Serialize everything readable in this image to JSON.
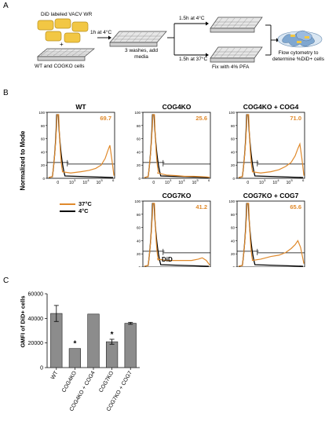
{
  "panels": {
    "a": "A",
    "b": "B",
    "c": "C"
  },
  "schematic": {
    "virus_label": "DiD labeled VACV WR",
    "plus": "+",
    "cells_label": "WT and COGKO cells",
    "step1": "1h at 4°C",
    "step2": "3 washes, add media",
    "cold_arm": "1.5h at 4°C",
    "warm_arm": "1.5h at 37°C",
    "fix": "Fix with 4% PFA",
    "readout": "Flow cytometry to determine %DiD+ cells"
  },
  "histograms": {
    "ylabel": "Normalized to Mode",
    "xlabel": "DiD",
    "legend": [
      {
        "label": "37°C",
        "color": "#E08A2C"
      },
      {
        "label": "4°C",
        "color": "#000000"
      }
    ],
    "y_ticks": [
      "100",
      "80",
      "60",
      "40",
      "20",
      "0"
    ],
    "x_ticks": [
      "0",
      "10",
      "3",
      "10",
      "4",
      "10",
      "5",
      "6"
    ],
    "plots": [
      {
        "title": "WT",
        "value": "69.7"
      },
      {
        "title": "COG4KO",
        "value": "25.6"
      },
      {
        "title": "COG4KO + COG4",
        "value": "71.0"
      },
      {
        "title": "COG7KO",
        "value": "41.2"
      },
      {
        "title": "COG7KO + COG7",
        "value": "65.6"
      }
    ]
  },
  "chart_data": {
    "type": "bar",
    "ylabel": "GMFI of DiD+ cells",
    "ylim": [
      0,
      60000
    ],
    "y_ticks": [
      "60000",
      "40000",
      "20000",
      "0"
    ],
    "categories": [
      "WT",
      "COG4KO",
      "COG4KO + COG4",
      "COG7KO",
      "COG7KO + COG7"
    ],
    "values": [
      44000,
      15500,
      43500,
      21000,
      36000
    ],
    "errors": [
      6500,
      0,
      0,
      2000,
      800
    ],
    "significance": [
      "",
      "*",
      "",
      "*",
      ""
    ],
    "bar_color": "#8C8C8C"
  }
}
